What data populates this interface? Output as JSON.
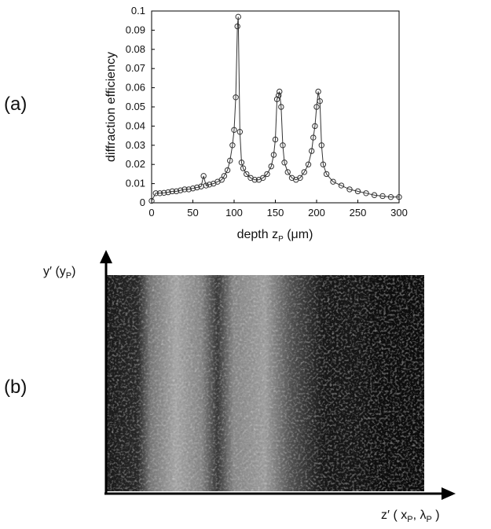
{
  "panels": [
    {
      "label": "(a)"
    },
    {
      "label": "(b)",
      "y_label": [
        "y′ (y",
        "P",
        ")"
      ],
      "x_label": [
        "z′ ( x",
        "P",
        ", λ",
        "P",
        " )"
      ]
    }
  ],
  "chart_data": {
    "type": "line",
    "ylabel": "diffraction efficiency",
    "xlabel": [
      "depth z",
      "P",
      " (μm)"
    ],
    "color": "#333333",
    "x": [
      0,
      5,
      10,
      15,
      20,
      25,
      30,
      35,
      40,
      45,
      50,
      55,
      60,
      63,
      66,
      70,
      75,
      80,
      85,
      88,
      92,
      95,
      98,
      100,
      102,
      104,
      105,
      107,
      109,
      111,
      115,
      120,
      125,
      130,
      135,
      140,
      145,
      148,
      150,
      152,
      154,
      155,
      157,
      159,
      161,
      165,
      170,
      175,
      180,
      185,
      190,
      194,
      196,
      198,
      200,
      202,
      204,
      206,
      208,
      212,
      220,
      230,
      240,
      250,
      260,
      270,
      280,
      290,
      300
    ],
    "values": [
      0.001,
      0.005,
      0.005,
      0.0052,
      0.0055,
      0.006,
      0.006,
      0.0065,
      0.007,
      0.007,
      0.0075,
      0.008,
      0.0085,
      0.014,
      0.009,
      0.0095,
      0.01,
      0.011,
      0.012,
      0.014,
      0.017,
      0.022,
      0.03,
      0.038,
      0.055,
      0.092,
      0.097,
      0.037,
      0.021,
      0.018,
      0.015,
      0.013,
      0.012,
      0.012,
      0.013,
      0.015,
      0.019,
      0.025,
      0.033,
      0.054,
      0.056,
      0.058,
      0.05,
      0.03,
      0.021,
      0.016,
      0.013,
      0.012,
      0.013,
      0.016,
      0.02,
      0.027,
      0.034,
      0.04,
      0.05,
      0.058,
      0.053,
      0.03,
      0.02,
      0.015,
      0.011,
      0.009,
      0.007,
      0.006,
      0.005,
      0.004,
      0.0035,
      0.003,
      0.003
    ],
    "xlim": [
      0,
      300
    ],
    "xticks": [
      0,
      50,
      100,
      150,
      200,
      250,
      300
    ],
    "ylim": [
      0,
      0.1
    ],
    "yticks": [
      0,
      0.01,
      0.02,
      0.03,
      0.04,
      0.05,
      0.06,
      0.07,
      0.08,
      0.09,
      0.1
    ]
  }
}
